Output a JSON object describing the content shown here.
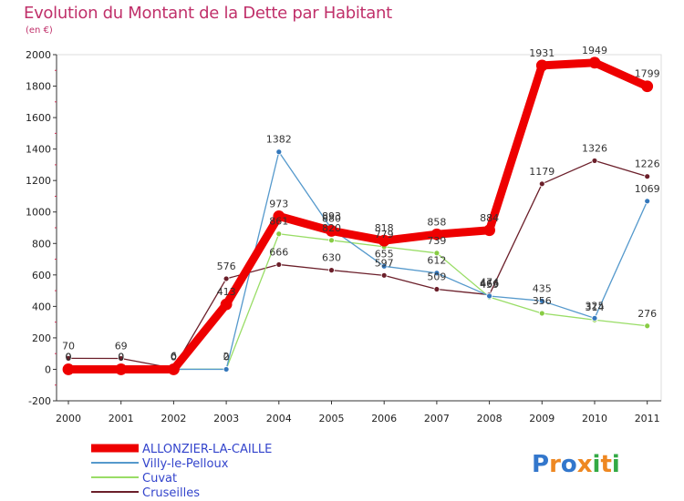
{
  "chart_data": {
    "type": "line",
    "title": "Evolution du Montant de la Dette par Habitant",
    "subtitle": "(en €)",
    "xlabel": "",
    "ylabel": "",
    "ylim": [
      -200,
      2000
    ],
    "yticks": [
      "-200",
      "0",
      "200",
      "400",
      "600",
      "800",
      "1000",
      "1200",
      "1400",
      "1600",
      "1800",
      "2000"
    ],
    "categories": [
      "2000",
      "2001",
      "2002",
      "2003",
      "2004",
      "2005",
      "2006",
      "2007",
      "2008",
      "2009",
      "2010",
      "2011"
    ],
    "legend_position": "bottom-left",
    "series": [
      {
        "name": "Cruseilles",
        "color": "#6b1f2a",
        "values": [
          70,
          69,
          6,
          576,
          666,
          630,
          597,
          509,
          474,
          1179,
          1326,
          1226
        ],
        "labels": [
          "70",
          "69",
          "6",
          "576",
          "666",
          "630",
          "597",
          "509",
          "474",
          "1179",
          "1326",
          "1226"
        ]
      },
      {
        "name": "Cuvat",
        "color": "#99dd66",
        "values": [
          0,
          0,
          0,
          2,
          861,
          820,
          779,
          739,
          459,
          356,
          314,
          276
        ],
        "labels": [
          "0",
          "0",
          "0",
          "2",
          "861",
          "820",
          "779",
          "739",
          "459",
          "356",
          "314",
          "276"
        ]
      },
      {
        "name": "Villy-le-Pelloux",
        "color": "#5599cc",
        "values": [
          0,
          0,
          0,
          0,
          1382,
          893,
          655,
          612,
          466,
          435,
          325,
          1069
        ],
        "labels": [
          "0",
          "0",
          "0",
          "0",
          "1382",
          "893",
          "655",
          "612",
          "466",
          "435",
          "325",
          "1069"
        ]
      },
      {
        "name": "ALLONZIER-LA-CAILLE",
        "color": "#ee0000",
        "values": [
          0,
          0,
          0,
          413,
          973,
          880,
          818,
          858,
          884,
          1931,
          1949,
          1799
        ],
        "labels": [
          "0",
          "0",
          "0",
          "413",
          "973",
          "880",
          "818",
          "858",
          "884",
          "1931",
          "1949",
          "1799"
        ]
      }
    ]
  },
  "legend": {
    "items": [
      "ALLONZIER-LA-CAILLE",
      "Villy-le-Pelloux",
      "Cuvat",
      "Cruseilles"
    ],
    "text_color": "#3344cc"
  },
  "logo": {
    "text": "Proxiti",
    "colors": [
      "#3377cc",
      "#ee8822",
      "#3377cc",
      "#ee8822",
      "#33aa44",
      "#ee8822",
      "#33aa44"
    ]
  }
}
